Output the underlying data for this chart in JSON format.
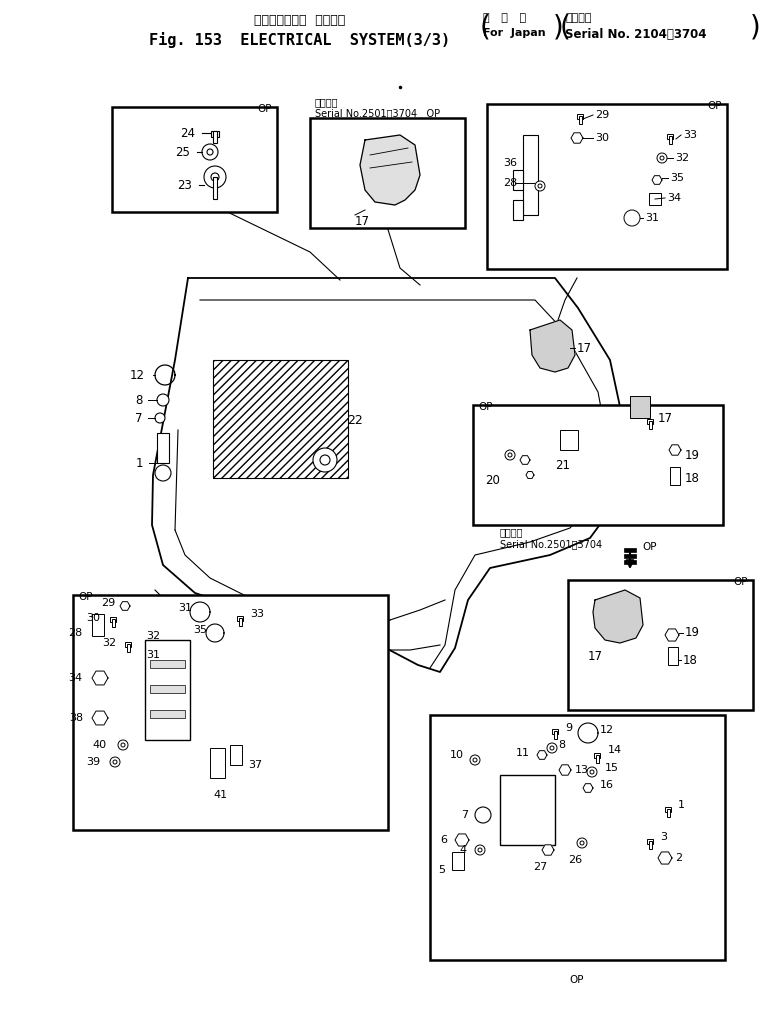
{
  "bg_color": "#ffffff",
  "title1": "エレクトリカル  システム",
  "title2": "Fig. 153  ELECTRICAL  SYSTEM(3/3)",
  "box1_line1": "国   内   向",
  "box1_line2": "For  Japan",
  "box2_line1": "適用号機",
  "box2_line2": "Serial No. 2104～3704",
  "serial_note1": "適用号機",
  "serial_note2": "Serial No.2501～3704   OP",
  "serial_note3": "適用号機",
  "serial_note4": "Serial No.2501～3704"
}
